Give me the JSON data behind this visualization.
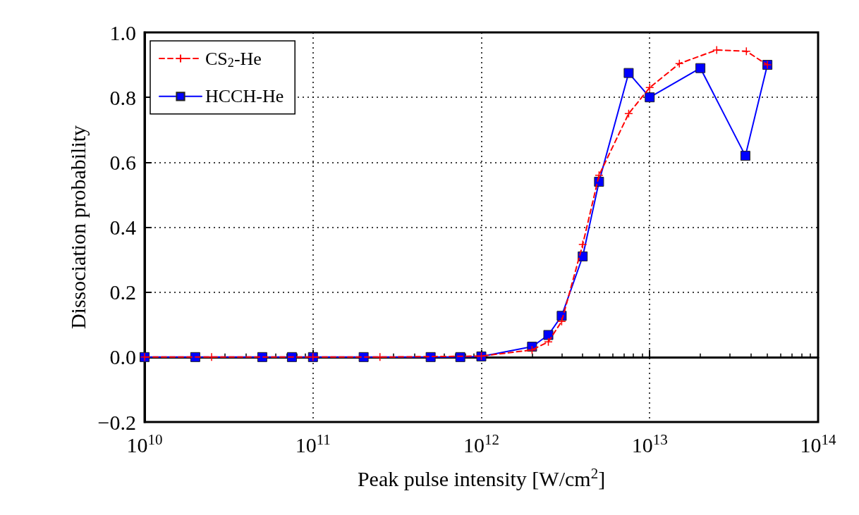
{
  "chart_data": {
    "type": "line",
    "xlabel": "Peak pulse intensity [W/cm$^{2}$]",
    "ylabel": "Dissociation probability",
    "log": "x",
    "xlim": [
      10000000000.0,
      100000000000000.0
    ],
    "xticks": [
      {
        "value": 10000000000.0,
        "label": "10$^{10}$"
      },
      {
        "value": 100000000000.0,
        "label": "10$^{11}$"
      },
      {
        "value": 1000000000000.0,
        "label": "10$^{12}$"
      },
      {
        "value": 10000000000000.0,
        "label": "10$^{13}$"
      },
      {
        "value": 100000000000000.0,
        "label": "10$^{14}$"
      }
    ],
    "ylim": [
      -0.2,
      1.0
    ],
    "yticks": [
      {
        "value": -0.2,
        "label": "−0.2"
      },
      {
        "value": 0,
        "label": "0.0"
      },
      {
        "value": 0.2,
        "label": "0.2"
      },
      {
        "value": 0.4,
        "label": "0.4"
      },
      {
        "value": 0.6,
        "label": "0.6"
      },
      {
        "value": 0.8,
        "label": "0.8"
      },
      {
        "value": 1.0,
        "label": "1.0"
      }
    ],
    "grid": true,
    "legend": "top left",
    "series": [
      {
        "name": "CS$_{2}$-He",
        "color": "#ff0000",
        "marker": "cross",
        "line_style": "dashed",
        "x": [
          10000000000.0,
          25000000000.0,
          100000000000.0,
          250000000000.0,
          1000000000000.0,
          2000000000000.0,
          2500000000000.0,
          3000000000000.0,
          4000000000000.0,
          5000000000000.0,
          7500000000000.0,
          10000000000000.0,
          15000000000000.0,
          25000000000000.0,
          37500000000000.0,
          50000000000000.0
        ],
        "values": [
          0,
          0,
          0,
          0,
          0.003,
          0.022,
          0.047,
          0.11,
          0.347,
          0.56,
          0.75,
          0.83,
          0.904,
          0.946,
          0.942,
          0.9
        ]
      },
      {
        "name": "HCCH-He",
        "color": "#0000ff",
        "marker": "square",
        "line_style": "solid",
        "x": [
          10000000000.0,
          20000000000.0,
          50000000000.0,
          75000000000.0,
          100000000000.0,
          200000000000.0,
          500000000000.0,
          750000000000.0,
          1000000000000.0,
          2000000000000.0,
          2500000000000.0,
          3000000000000.0,
          4000000000000.0,
          5000000000000.0,
          7500000000000.0,
          10000000000000.0,
          20000000000000.0,
          37000000000000.0,
          50000000000000.0
        ],
        "values": [
          0,
          0,
          0,
          0,
          0,
          0,
          0,
          0,
          0.002,
          0.032,
          0.068,
          0.127,
          0.31,
          0.54,
          0.875,
          0.8,
          0.89,
          0.62,
          0.9
        ]
      }
    ]
  }
}
